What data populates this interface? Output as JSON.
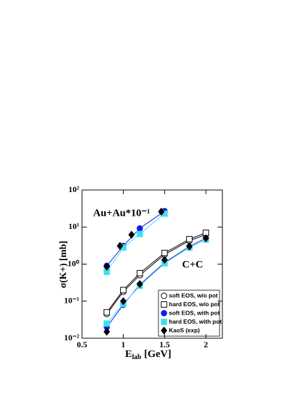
{
  "chart_data": {
    "type": "line",
    "log_y": true,
    "ylabel": "σ(K+) [mb]",
    "xlabel": "E",
    "xlabel_sub": "lab",
    "xlabel_unit": "[GeV]",
    "annotations": [
      "Au+Au*10⁻¹",
      "C+C"
    ],
    "xlim": [
      0.5,
      2.2
    ],
    "xticks": [
      0.5,
      1.0,
      1.5,
      2.0
    ],
    "ylim": [
      0.01,
      100
    ],
    "yticks": [
      {
        "value": 0.01,
        "label": "10⁻²"
      },
      {
        "value": 0.1,
        "label": "10⁻¹"
      },
      {
        "value": 1,
        "label": "10⁰"
      },
      {
        "value": 10,
        "label": "10¹"
      },
      {
        "value": 100,
        "label": "10²"
      }
    ],
    "series": [
      {
        "name": "soft EOS, w/o pot",
        "marker": "circle",
        "filled": false,
        "color": "#000000",
        "segments": [
          {
            "x": [
              0.8,
              1.0,
              1.2,
              1.5,
              1.8,
              2.0
            ],
            "values": [
              0.045,
              0.18,
              0.5,
              1.8,
              4.3,
              6.2
            ]
          }
        ]
      },
      {
        "name": "hard EOS, w/o pot",
        "marker": "square",
        "filled": false,
        "color": "#000000",
        "segments": [
          {
            "x": [
              0.8,
              1.0,
              1.2,
              1.5,
              1.8,
              2.0
            ],
            "values": [
              0.05,
              0.2,
              0.57,
              2.0,
              4.7,
              7.0
            ]
          }
        ]
      },
      {
        "name": "soft EOS, with pot",
        "marker": "circle",
        "filled": true,
        "color": "#1a1aee",
        "segments": [
          {
            "x": [
              0.8,
              1.0,
              1.2,
              1.5,
              1.8,
              2.0
            ],
            "values": [
              0.02,
              0.08,
              0.28,
              1.1,
              3.0,
              5.0
            ]
          },
          {
            "x": [
              0.8,
              1.0,
              1.2,
              1.5
            ],
            "values": [
              0.9,
              3.1,
              9.2,
              27
            ]
          }
        ]
      },
      {
        "name": "hard EOS, with pot",
        "marker": "square",
        "filled": true,
        "color": "#3fe0f0",
        "segments": [
          {
            "x": [
              0.8,
              1.0,
              1.2,
              1.5,
              1.8,
              2.0
            ],
            "values": [
              0.025,
              0.085,
              0.26,
              1.05,
              2.8,
              4.6
            ]
          },
          {
            "x": [
              0.8,
              1.0,
              1.2,
              1.5
            ],
            "values": [
              0.62,
              2.8,
              6.5,
              23
            ]
          }
        ]
      },
      {
        "name": "KaoS (exp)",
        "marker": "diamond",
        "filled": true,
        "color": "#000000",
        "nolines": true,
        "segments": [
          {
            "x": [
              0.8,
              1.0,
              1.2,
              1.5,
              1.8,
              2.0
            ],
            "values": [
              0.015,
              0.1,
              0.29,
              1.3,
              3.0,
              5.0
            ]
          },
          {
            "x": [
              0.8,
              0.96,
              1.1,
              1.46
            ],
            "values": [
              0.85,
              3.1,
              6.2,
              26
            ]
          }
        ]
      }
    ]
  }
}
